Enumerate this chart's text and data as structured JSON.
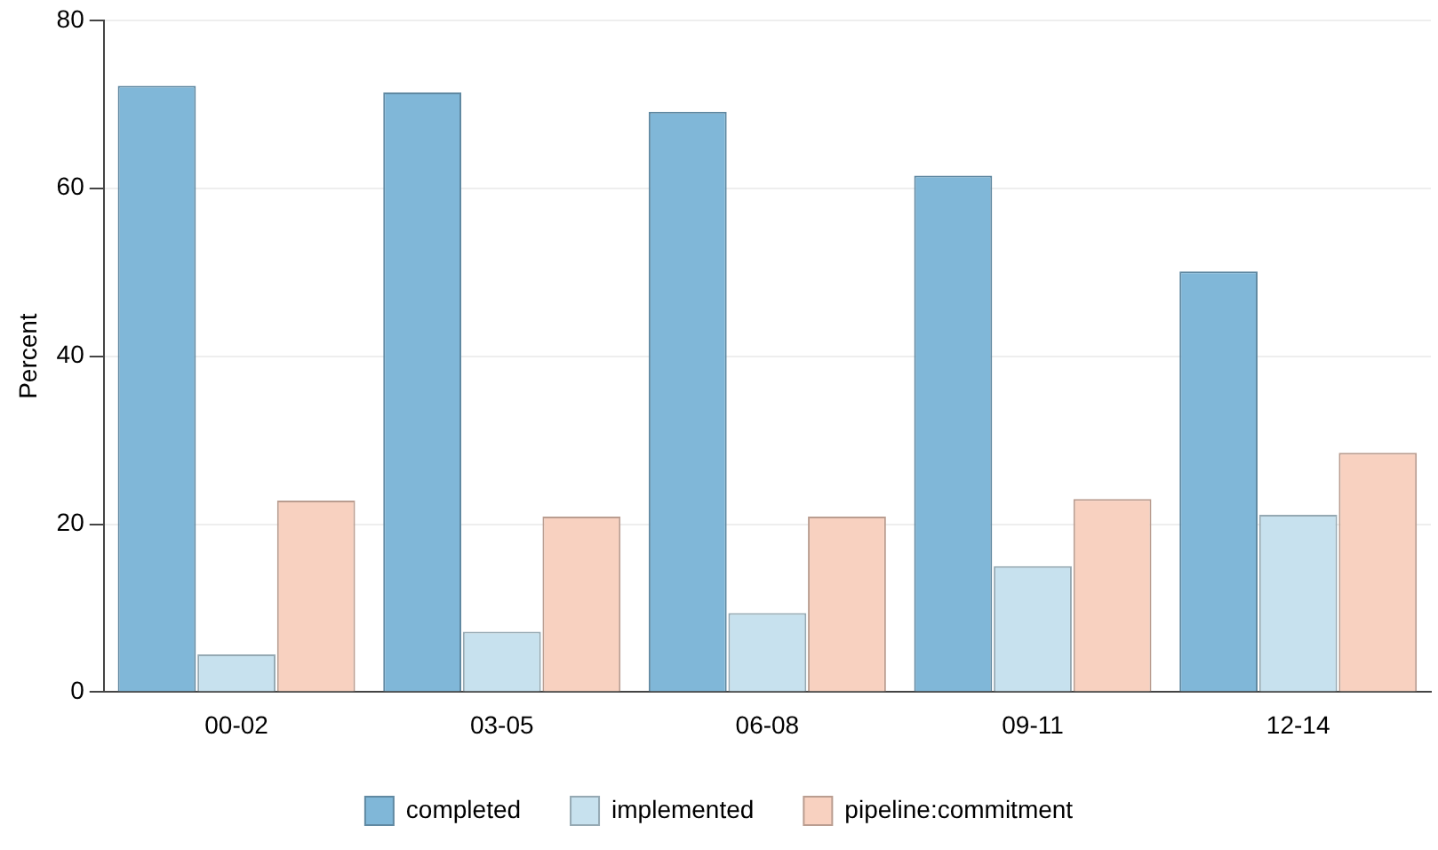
{
  "chart_data": {
    "type": "bar",
    "ylabel": "Percent",
    "categories": [
      "00-02",
      "03-05",
      "06-08",
      "09-11",
      "12-14"
    ],
    "series": [
      {
        "name": "completed",
        "color": "#80b7d8",
        "values": [
          72.2,
          71.4,
          69.1,
          61.5,
          50.1
        ]
      },
      {
        "name": "implemented",
        "color": "#c7e1ee",
        "values": [
          4.5,
          7.2,
          9.4,
          15.0,
          21.1
        ]
      },
      {
        "name": "pipeline:commitment",
        "color": "#f8d1c0",
        "values": [
          22.8,
          20.9,
          20.9,
          23.0,
          28.5
        ]
      }
    ],
    "ylim": [
      0,
      80
    ],
    "yticks": [
      0,
      20,
      40,
      60,
      80
    ],
    "grid": "y",
    "legend": "bottom"
  }
}
